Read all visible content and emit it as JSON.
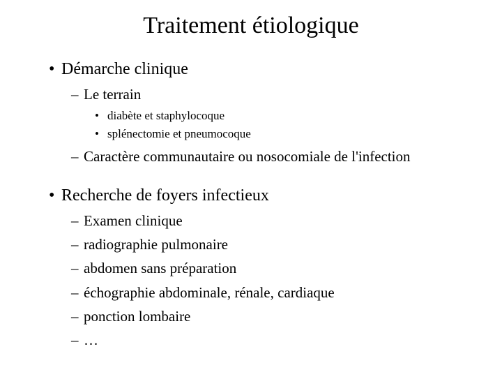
{
  "title": "Traitement étiologique",
  "style": {
    "background": "#ffffff",
    "text_color": "#000000",
    "font_family": "Times New Roman",
    "title_fontsize": 34,
    "l1_fontsize": 24,
    "l2_fontsize": 21,
    "l3_fontsize": 17,
    "l1_bullet": "•",
    "l2_bullet": "–",
    "l3_bullet": "•"
  },
  "items": {
    "a": {
      "label": "Démarche clinique",
      "sub": {
        "a1": {
          "label": "Le terrain",
          "sub": {
            "a1a": "diabète et staphylocoque",
            "a1b": "splénectomie et pneumocoque"
          }
        },
        "a2": {
          "label": "Caractère communautaire ou nosocomiale de l'infection"
        }
      }
    },
    "b": {
      "label": "Recherche de foyers infectieux",
      "sub": {
        "b1": "Examen clinique",
        "b2": "radiographie pulmonaire",
        "b3": "abdomen sans préparation",
        "b4": "échographie abdominale, rénale, cardiaque",
        "b5": "ponction lombaire",
        "b6": "…"
      }
    }
  }
}
